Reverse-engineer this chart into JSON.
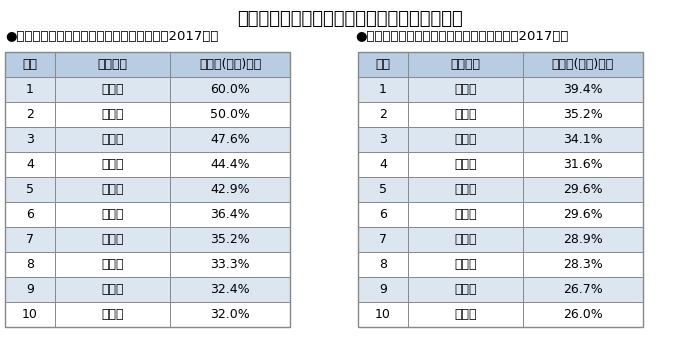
{
  "title": "＜通学中の自転車事故の１当割合ランキング＞",
  "title_fontsize": 13,
  "left_subtitle": "●中学生の通学時自転車事故の加害者割合（2017年）",
  "right_subtitle": "●高校生の通学時自転車事故の加害者割合（2017年）",
  "subtitle_fontsize": 9.5,
  "header": [
    "順位",
    "都道府県",
    "加害者(１当)割合"
  ],
  "left_data": [
    [
      "1",
      "新　潟",
      "60.0%"
    ],
    [
      "2",
      "和歌山",
      "50.0%"
    ],
    [
      "3",
      "高　知",
      "47.6%"
    ],
    [
      "4",
      "富　山",
      "44.4%"
    ],
    [
      "5",
      "兵　庫",
      "42.9%"
    ],
    [
      "6",
      "栃　木",
      "36.4%"
    ],
    [
      "7",
      "佐　賀",
      "35.2%"
    ],
    [
      "8",
      "滋　賀",
      "33.3%"
    ],
    [
      "9",
      "三　重",
      "32.4%"
    ],
    [
      "10",
      "静　岡",
      "32.0%"
    ]
  ],
  "right_data": [
    [
      "1",
      "兵　庫",
      "39.4%"
    ],
    [
      "2",
      "栃　木",
      "35.2%"
    ],
    [
      "3",
      "和歌山",
      "34.1%"
    ],
    [
      "4",
      "高　知",
      "31.6%"
    ],
    [
      "5",
      "滋　賀",
      "29.6%"
    ],
    [
      "6",
      "静　岡",
      "29.6%"
    ],
    [
      "7",
      "三　重",
      "28.9%"
    ],
    [
      "8",
      "東　京",
      "28.3%"
    ],
    [
      "9",
      "新　潟",
      "26.7%"
    ],
    [
      "10",
      "京　都",
      "26.0%"
    ]
  ],
  "header_bg": "#b8cce4",
  "row_bg_even": "#ffffff",
  "row_bg_odd": "#ffffff",
  "border_color": "#888888",
  "text_color": "#000000",
  "background_color": "#ffffff",
  "cell_fontsize": 9,
  "header_fontsize": 9
}
